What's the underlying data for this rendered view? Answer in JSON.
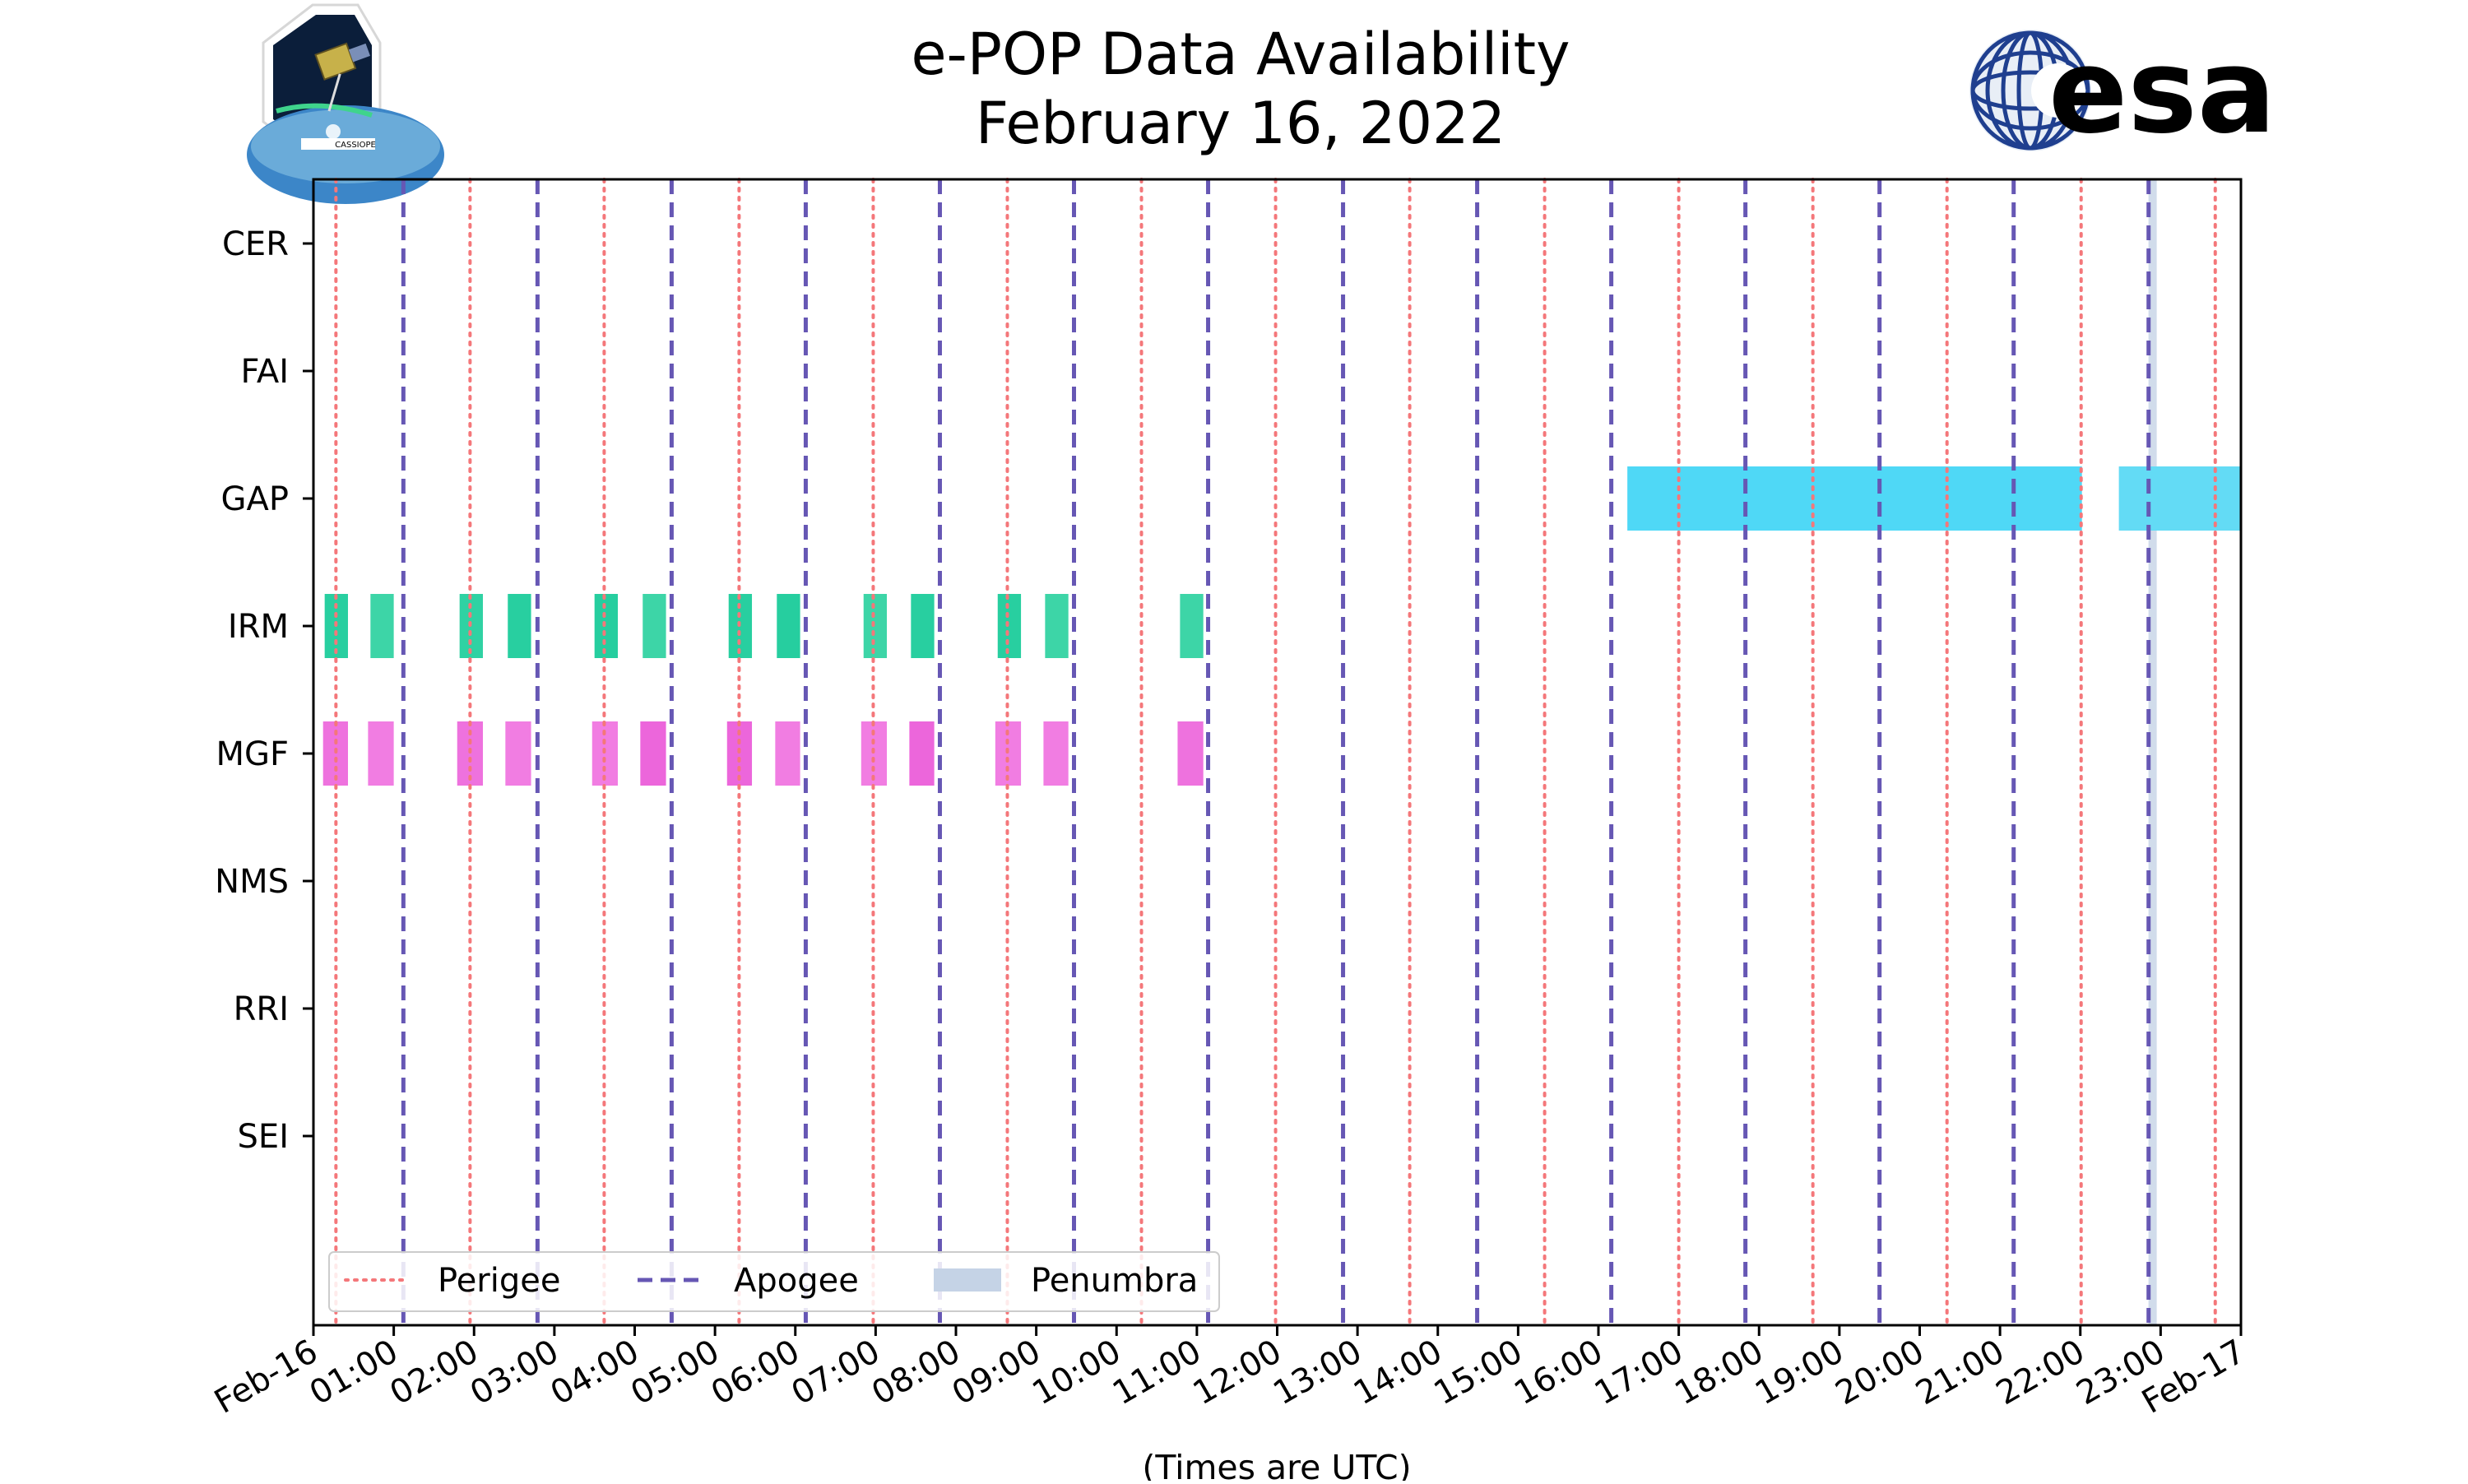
{
  "chart_data": {
    "type": "timeline",
    "title_line1": "e-POP Data Availability",
    "title_line2": "February 16, 2022",
    "xlabel": "(Times are UTC)",
    "x_unit": "hours since 2022-02-16 00:00 UTC",
    "xlim": [
      0,
      24
    ],
    "x_tick_labels": [
      "Feb-16",
      "01:00",
      "02:00",
      "03:00",
      "04:00",
      "05:00",
      "06:00",
      "07:00",
      "08:00",
      "09:00",
      "10:00",
      "11:00",
      "12:00",
      "13:00",
      "14:00",
      "15:00",
      "16:00",
      "17:00",
      "18:00",
      "19:00",
      "20:00",
      "21:00",
      "22:00",
      "23:00",
      "Feb-17"
    ],
    "instruments": [
      "CER",
      "FAI",
      "GAP",
      "IRM",
      "MGF",
      "NMS",
      "RRI",
      "SEI"
    ],
    "perigee_times": [
      0.28,
      1.95,
      3.62,
      5.3,
      6.97,
      8.64,
      10.31,
      11.98,
      13.65,
      15.33,
      17.0,
      18.67,
      20.34,
      22.01,
      23.68
    ],
    "apogee_times": [
      1.12,
      2.79,
      4.46,
      6.13,
      7.8,
      9.47,
      11.14,
      12.82,
      14.49,
      16.16,
      17.83,
      19.5,
      21.17,
      22.85
    ],
    "penumbra_times": [
      22.9
    ],
    "availability": {
      "CER": [],
      "FAI": [],
      "GAP": [
        {
          "start": 16.36,
          "end": 22.02,
          "color": "#4fd8f6"
        },
        {
          "start": 22.48,
          "end": 24.0,
          "color": "#63dbf5"
        }
      ],
      "IRM": [
        {
          "start": 0.14,
          "end": 0.43,
          "color": "#28cfa0"
        },
        {
          "start": 0.71,
          "end": 1.0,
          "color": "#3dd5a7"
        },
        {
          "start": 1.82,
          "end": 2.11,
          "color": "#2fd2a3"
        },
        {
          "start": 2.42,
          "end": 2.71,
          "color": "#28cfa0"
        },
        {
          "start": 3.5,
          "end": 3.79,
          "color": "#26ce9f"
        },
        {
          "start": 4.1,
          "end": 4.39,
          "color": "#3dd5a7"
        },
        {
          "start": 5.17,
          "end": 5.46,
          "color": "#28cfa0"
        },
        {
          "start": 5.77,
          "end": 6.06,
          "color": "#26ce9f"
        },
        {
          "start": 6.85,
          "end": 7.14,
          "color": "#3dd5a7"
        },
        {
          "start": 7.44,
          "end": 7.73,
          "color": "#28cfa0"
        },
        {
          "start": 8.52,
          "end": 8.81,
          "color": "#28cfa0"
        },
        {
          "start": 9.11,
          "end": 9.4,
          "color": "#3dd5a7"
        },
        {
          "start": 10.79,
          "end": 11.08,
          "color": "#3dd5a7"
        }
      ],
      "MGF": [
        {
          "start": 0.12,
          "end": 0.43,
          "color": "#ee72de"
        },
        {
          "start": 0.68,
          "end": 1.0,
          "color": "#f17de2"
        },
        {
          "start": 1.79,
          "end": 2.11,
          "color": "#ee72de"
        },
        {
          "start": 2.39,
          "end": 2.71,
          "color": "#f17de2"
        },
        {
          "start": 3.47,
          "end": 3.79,
          "color": "#f17de2"
        },
        {
          "start": 4.07,
          "end": 4.39,
          "color": "#ec66db"
        },
        {
          "start": 5.15,
          "end": 5.46,
          "color": "#ec66db"
        },
        {
          "start": 5.75,
          "end": 6.06,
          "color": "#f17de2"
        },
        {
          "start": 6.82,
          "end": 7.14,
          "color": "#f17de2"
        },
        {
          "start": 7.42,
          "end": 7.73,
          "color": "#ec66db"
        },
        {
          "start": 8.49,
          "end": 8.81,
          "color": "#f17de2"
        },
        {
          "start": 9.09,
          "end": 9.4,
          "color": "#f17de2"
        },
        {
          "start": 10.76,
          "end": 11.08,
          "color": "#ee72de"
        }
      ],
      "NMS": [],
      "RRI": [],
      "SEI": []
    },
    "colors": {
      "perigee": "#f4777a",
      "apogee": "#6657b4",
      "penumbra": "#c5d3e6"
    },
    "legend": {
      "location": "lower-left",
      "entries": [
        {
          "key": "perigee",
          "label": "Perigee",
          "style": "dotted"
        },
        {
          "key": "apogee",
          "label": "Apogee",
          "style": "dashed"
        },
        {
          "key": "penumbra",
          "label": "Penumbra",
          "style": "patch"
        }
      ]
    }
  },
  "logos": {
    "left_badge_text": "CASSIOPE",
    "right_text": "esa",
    "right_color": "#0f2a7a"
  }
}
